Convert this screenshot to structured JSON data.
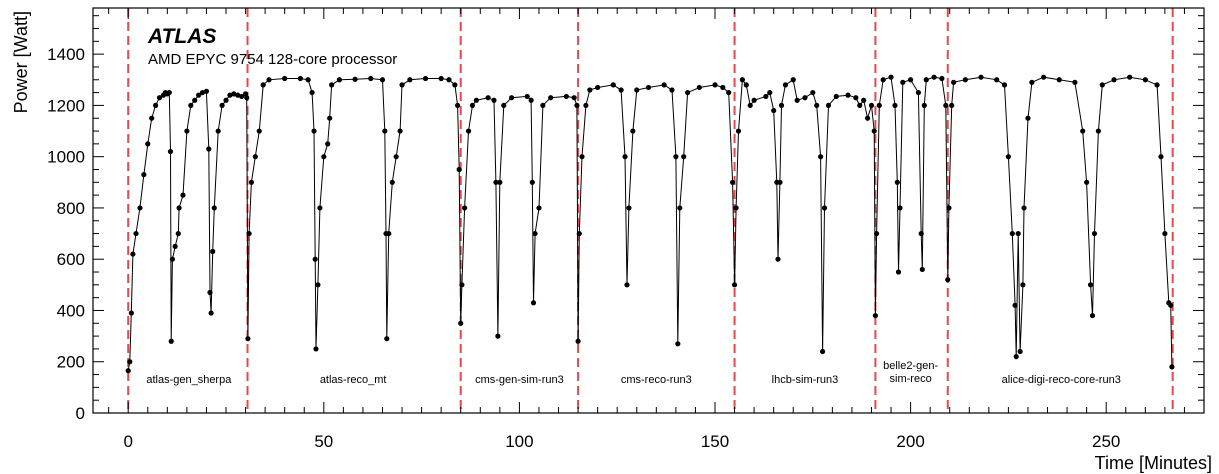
{
  "chart_data": {
    "type": "line",
    "experiment": "ATLAS",
    "subtitle": "AMD EPYC 9754 128-core processor",
    "xlabel": "Time [Minutes]",
    "ylabel": "Power [Watt]",
    "xlim": [
      -9,
      275
    ],
    "ylim": [
      0,
      1580
    ],
    "xticks": [
      0,
      50,
      100,
      150,
      200,
      250
    ],
    "yticks": [
      0,
      200,
      400,
      600,
      800,
      1000,
      1200,
      1400
    ],
    "grid": false,
    "line_color": "#000000",
    "separator_color": "#e8474c",
    "boundaries": [
      0,
      30.5,
      85,
      115,
      155,
      191,
      209.5,
      267
    ],
    "benchmarks": [
      {
        "label": "atlas-gen_sherpa",
        "x": 15.5,
        "label_lines": [
          "atlas-gen_sherpa"
        ]
      },
      {
        "label": "atlas-reco_mt",
        "x": 57.5,
        "label_lines": [
          "atlas-reco_mt"
        ]
      },
      {
        "label": "cms-gen-sim-run3",
        "x": 100,
        "label_lines": [
          "cms-gen-sim-run3"
        ]
      },
      {
        "label": "cms-reco-run3",
        "x": 135,
        "label_lines": [
          "cms-reco-run3"
        ]
      },
      {
        "label": "lhcb-sim-run3",
        "x": 173,
        "label_lines": [
          "lhcb-sim-run3"
        ]
      },
      {
        "label": "belle2-gen-sim-reco",
        "x": 200,
        "label_lines": [
          "belle2-gen-",
          "sim-reco"
        ]
      },
      {
        "label": "alice-digi-reco-core-run3",
        "x": 238.5,
        "label_lines": [
          "alice-digi-reco-core-run3"
        ]
      }
    ],
    "series": [
      {
        "points": [
          [
            0,
            165
          ],
          [
            0.4,
            200
          ],
          [
            0.8,
            390
          ],
          [
            1.2,
            620
          ],
          [
            2,
            700
          ],
          [
            3,
            800
          ],
          [
            4,
            930
          ],
          [
            5,
            1050
          ],
          [
            6,
            1150
          ],
          [
            7,
            1200
          ],
          [
            8,
            1230
          ],
          [
            9,
            1240
          ],
          [
            9.5,
            1250
          ],
          [
            10,
            1245
          ],
          [
            10.5,
            1250
          ],
          [
            10.8,
            1020
          ],
          [
            11,
            280
          ],
          [
            11.3,
            600
          ],
          [
            12,
            650
          ],
          [
            12.8,
            700
          ],
          [
            13,
            800
          ],
          [
            14,
            850
          ],
          [
            15,
            1100
          ],
          [
            16,
            1200
          ],
          [
            17,
            1220
          ],
          [
            18,
            1240
          ],
          [
            19,
            1250
          ],
          [
            20,
            1255
          ],
          [
            20.6,
            1030
          ],
          [
            20.9,
            470
          ],
          [
            21.2,
            390
          ],
          [
            21.6,
            630
          ],
          [
            22,
            800
          ],
          [
            23,
            1100
          ],
          [
            24,
            1200
          ],
          [
            25,
            1220
          ],
          [
            26,
            1240
          ],
          [
            27,
            1245
          ],
          [
            28,
            1240
          ],
          [
            29,
            1235
          ],
          [
            30,
            1245
          ],
          [
            30.3,
            1230
          ],
          [
            30.6,
            290
          ],
          [
            30.9,
            700
          ],
          [
            31.5,
            900
          ],
          [
            32.5,
            1000
          ],
          [
            33.5,
            1100
          ],
          [
            34.5,
            1280
          ],
          [
            36,
            1300
          ],
          [
            40,
            1305
          ],
          [
            44,
            1305
          ],
          [
            46,
            1300
          ],
          [
            47,
            1250
          ],
          [
            47.5,
            1100
          ],
          [
            47.8,
            600
          ],
          [
            48,
            250
          ],
          [
            48.5,
            500
          ],
          [
            49,
            800
          ],
          [
            50,
            1000
          ],
          [
            51,
            1050
          ],
          [
            51.5,
            1150
          ],
          [
            52,
            1280
          ],
          [
            54,
            1300
          ],
          [
            58,
            1302
          ],
          [
            62,
            1305
          ],
          [
            65,
            1300
          ],
          [
            65.6,
            1100
          ],
          [
            65.9,
            700
          ],
          [
            66.1,
            290
          ],
          [
            66.6,
            700
          ],
          [
            67.5,
            900
          ],
          [
            68.5,
            1000
          ],
          [
            69.5,
            1100
          ],
          [
            70,
            1280
          ],
          [
            72,
            1300
          ],
          [
            76,
            1305
          ],
          [
            80,
            1305
          ],
          [
            82,
            1300
          ],
          [
            83.5,
            1280
          ],
          [
            84.2,
            1200
          ],
          [
            84.6,
            950
          ],
          [
            85,
            350
          ],
          [
            85.3,
            500
          ],
          [
            86,
            800
          ],
          [
            87,
            1100
          ],
          [
            88,
            1200
          ],
          [
            89,
            1220
          ],
          [
            92,
            1230
          ],
          [
            93.5,
            1220
          ],
          [
            94,
            900
          ],
          [
            94.5,
            300
          ],
          [
            95,
            900
          ],
          [
            96,
            1200
          ],
          [
            98,
            1230
          ],
          [
            102,
            1235
          ],
          [
            103,
            1220
          ],
          [
            103.3,
            900
          ],
          [
            103.6,
            430
          ],
          [
            104,
            700
          ],
          [
            105,
            800
          ],
          [
            106,
            1200
          ],
          [
            108,
            1230
          ],
          [
            112,
            1235
          ],
          [
            114,
            1230
          ],
          [
            114.7,
            1200
          ],
          [
            115,
            280
          ],
          [
            115.3,
            700
          ],
          [
            116,
            1000
          ],
          [
            117,
            1200
          ],
          [
            118,
            1260
          ],
          [
            120,
            1270
          ],
          [
            124,
            1280
          ],
          [
            126,
            1260
          ],
          [
            127,
            1000
          ],
          [
            127.5,
            500
          ],
          [
            128,
            800
          ],
          [
            129,
            1100
          ],
          [
            130,
            1260
          ],
          [
            133,
            1270
          ],
          [
            137,
            1280
          ],
          [
            139,
            1260
          ],
          [
            140,
            1000
          ],
          [
            140.5,
            270
          ],
          [
            141,
            800
          ],
          [
            142,
            1000
          ],
          [
            143,
            1250
          ],
          [
            146,
            1270
          ],
          [
            150,
            1280
          ],
          [
            152,
            1270
          ],
          [
            153.5,
            1250
          ],
          [
            154.5,
            900
          ],
          [
            155,
            500
          ],
          [
            155.4,
            800
          ],
          [
            156,
            1100
          ],
          [
            157,
            1300
          ],
          [
            158,
            1280
          ],
          [
            159,
            1200
          ],
          [
            160,
            1220
          ],
          [
            163,
            1235
          ],
          [
            164,
            1250
          ],
          [
            165,
            1180
          ],
          [
            165.8,
            900
          ],
          [
            166.1,
            600
          ],
          [
            166.6,
            900
          ],
          [
            167,
            1200
          ],
          [
            168,
            1280
          ],
          [
            170,
            1300
          ],
          [
            171,
            1220
          ],
          [
            173,
            1230
          ],
          [
            175,
            1250
          ],
          [
            176,
            1200
          ],
          [
            177,
            1000
          ],
          [
            177.5,
            240
          ],
          [
            178,
            800
          ],
          [
            179,
            1200
          ],
          [
            181,
            1235
          ],
          [
            184,
            1240
          ],
          [
            186,
            1230
          ],
          [
            187,
            1200
          ],
          [
            188,
            1220
          ],
          [
            189,
            1150
          ],
          [
            190,
            1200
          ],
          [
            190.7,
            1100
          ],
          [
            191,
            380
          ],
          [
            191.3,
            700
          ],
          [
            192,
            1200
          ],
          [
            193,
            1300
          ],
          [
            195,
            1310
          ],
          [
            196,
            1200
          ],
          [
            196.6,
            900
          ],
          [
            196.9,
            550
          ],
          [
            197.3,
            800
          ],
          [
            198,
            1290
          ],
          [
            200,
            1300
          ],
          [
            202,
            1250
          ],
          [
            202.7,
            700
          ],
          [
            203,
            560
          ],
          [
            203.5,
            1200
          ],
          [
            204,
            1300
          ],
          [
            206,
            1310
          ],
          [
            208,
            1305
          ],
          [
            209,
            1200
          ],
          [
            209.5,
            520
          ],
          [
            209.8,
            800
          ],
          [
            210.5,
            1200
          ],
          [
            211,
            1290
          ],
          [
            214,
            1300
          ],
          [
            218,
            1310
          ],
          [
            222,
            1300
          ],
          [
            224,
            1280
          ],
          [
            225,
            1000
          ],
          [
            226,
            700
          ],
          [
            226.7,
            420
          ],
          [
            227,
            220
          ],
          [
            227.5,
            700
          ],
          [
            228,
            240
          ],
          [
            228.7,
            500
          ],
          [
            229,
            800
          ],
          [
            230,
            1150
          ],
          [
            231,
            1290
          ],
          [
            234,
            1310
          ],
          [
            238,
            1300
          ],
          [
            242,
            1290
          ],
          [
            244,
            1100
          ],
          [
            245,
            900
          ],
          [
            246,
            500
          ],
          [
            246.5,
            380
          ],
          [
            247,
            700
          ],
          [
            248,
            1100
          ],
          [
            249,
            1280
          ],
          [
            252,
            1300
          ],
          [
            256,
            1310
          ],
          [
            260,
            1300
          ],
          [
            263,
            1280
          ],
          [
            264,
            1000
          ],
          [
            265,
            700
          ],
          [
            266,
            430
          ],
          [
            266.5,
            420
          ],
          [
            266.8,
            180
          ]
        ]
      }
    ]
  }
}
